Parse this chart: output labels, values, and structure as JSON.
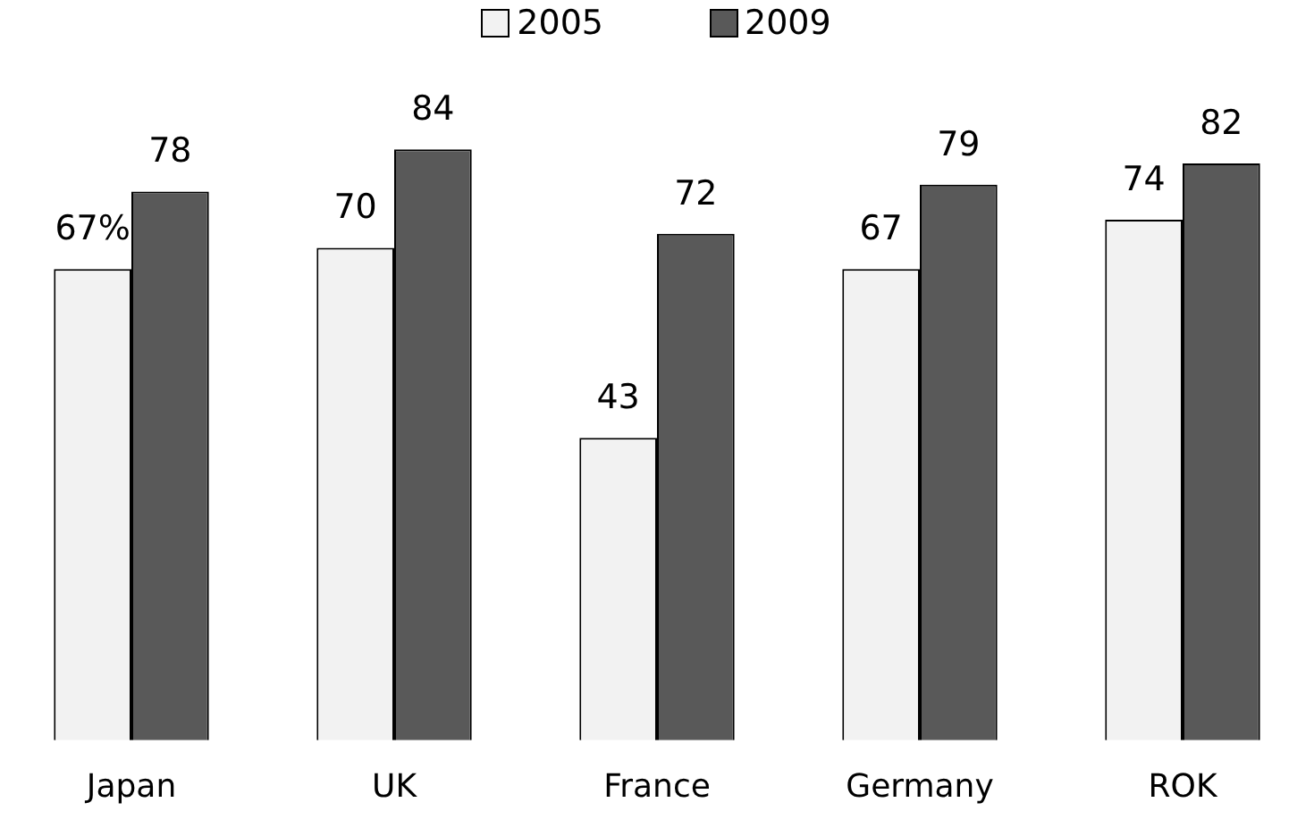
{
  "chart_data": {
    "type": "bar",
    "categories": [
      "Japan",
      "UK",
      "France",
      "Germany",
      "ROK"
    ],
    "series": [
      {
        "name": "2005",
        "color": "#f2f2f2",
        "values": [
          67,
          70,
          43,
          67,
          74
        ],
        "value_labels": [
          "67%",
          "70",
          "43",
          "67",
          "74"
        ]
      },
      {
        "name": "2009",
        "color": "#595959",
        "values": [
          78,
          84,
          72,
          79,
          82
        ],
        "value_labels": [
          "78",
          "84",
          "72",
          "79",
          "82"
        ]
      }
    ],
    "legend": "top",
    "grid": false
  }
}
